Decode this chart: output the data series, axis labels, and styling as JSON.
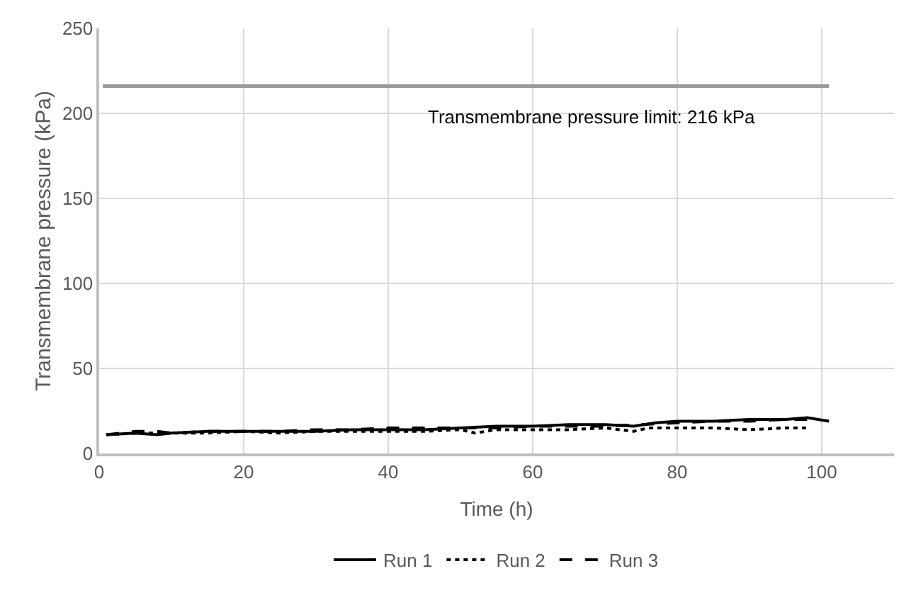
{
  "chart_data": {
    "type": "line",
    "xlabel": "Time (h)",
    "ylabel": "Transmembrane pressure (kPa)",
    "xlim": [
      0,
      110
    ],
    "xticks": [
      0,
      20,
      40,
      60,
      80,
      100
    ],
    "ylim": [
      0,
      250
    ],
    "yticks": [
      0,
      50,
      100,
      150,
      200,
      250
    ],
    "grid": true,
    "legend": "bottom",
    "marker": "none",
    "ref_lines": [
      {
        "axis": "y",
        "value": 216,
        "label": "Transmembrane pressure limit: 216 kPa",
        "color": "#999999"
      }
    ],
    "series": [
      {
        "name": "Run 1",
        "color": "#000000",
        "line_style": "solid",
        "x": [
          1,
          5,
          8,
          10,
          15,
          20,
          25,
          30,
          35,
          40,
          45,
          50,
          55,
          60,
          65,
          70,
          74,
          77,
          80,
          85,
          90,
          95,
          98,
          101
        ],
        "values": [
          11,
          12,
          11,
          12,
          13,
          13,
          13,
          13,
          14,
          14,
          14,
          15,
          16,
          16,
          17,
          17,
          16,
          18,
          19,
          19,
          20,
          20,
          21,
          19
        ]
      },
      {
        "name": "Run 2",
        "color": "#000000",
        "line_style": "dotted",
        "x": [
          1,
          5,
          10,
          15,
          20,
          25,
          30,
          35,
          40,
          45,
          50,
          52,
          55,
          60,
          65,
          70,
          74,
          76,
          80,
          85,
          90,
          95,
          98
        ],
        "values": [
          11,
          12,
          12,
          12,
          13,
          12,
          13,
          13,
          13,
          13,
          14,
          12,
          14,
          14,
          14,
          15,
          13,
          15,
          15,
          15,
          14,
          15,
          15
        ]
      },
      {
        "name": "Run 3",
        "color": "#000000",
        "line_style": "dashed",
        "x": [
          1,
          5,
          8,
          10,
          15,
          20,
          25,
          30,
          35,
          40,
          45,
          50,
          55,
          60,
          65,
          70,
          75,
          80,
          85,
          90,
          95,
          98
        ],
        "values": [
          11,
          13,
          13,
          12,
          13,
          13,
          13,
          14,
          14,
          15,
          15,
          15,
          15,
          16,
          16,
          16,
          17,
          18,
          19,
          19,
          20,
          20
        ]
      }
    ]
  }
}
